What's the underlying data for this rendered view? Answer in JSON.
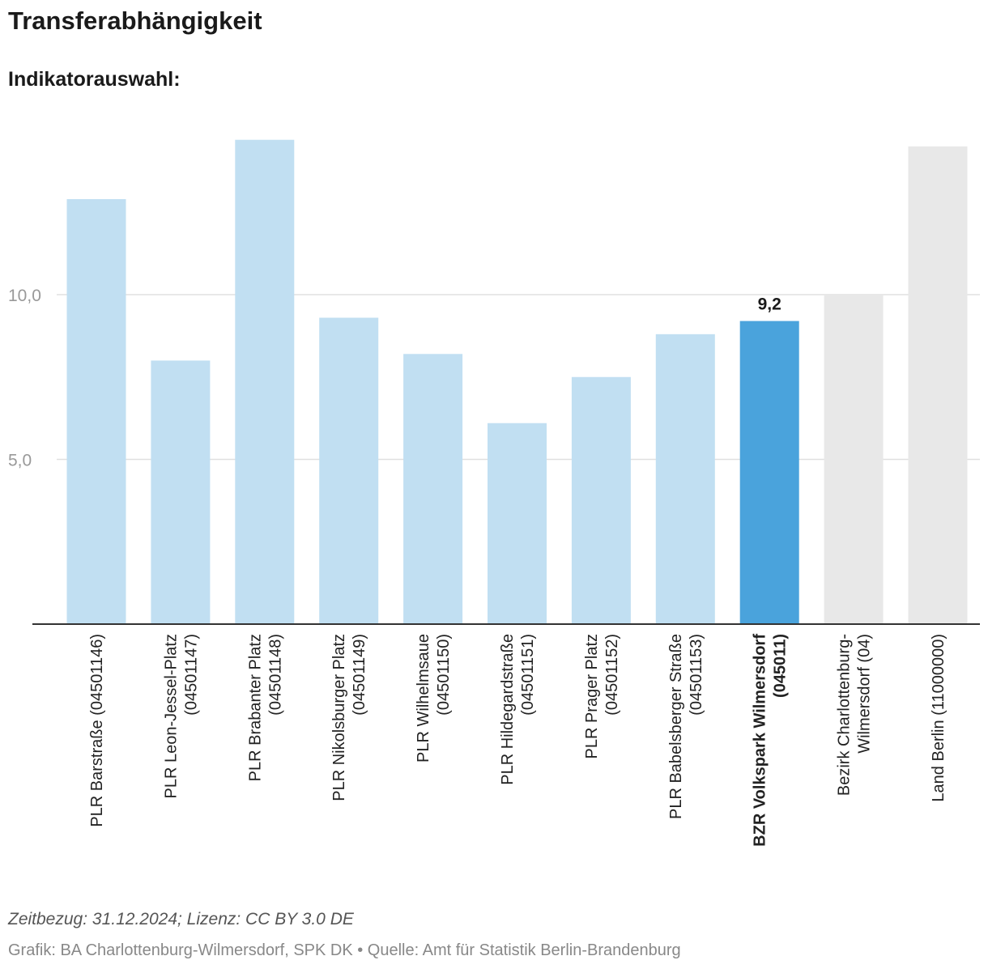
{
  "header": {
    "title": "Transferabhängigkeit",
    "subtitle": "Indikatorauswahl:"
  },
  "chart_data": {
    "type": "bar",
    "title": "Transferabhängigkeit",
    "xlabel": "",
    "ylabel": "",
    "ylim": [
      0,
      15
    ],
    "yticks": [
      {
        "value": 5,
        "label": "5,0"
      },
      {
        "value": 10,
        "label": "10,0"
      }
    ],
    "grid": true,
    "bars": [
      {
        "lines": [
          "PLR Barstraße (04501146)"
        ],
        "value": 12.9,
        "group": "plr"
      },
      {
        "lines": [
          "PLR Leon-Jessel-Platz",
          "(04501147)"
        ],
        "value": 8.0,
        "group": "plr"
      },
      {
        "lines": [
          "PLR Brabanter Platz",
          "(04501148)"
        ],
        "value": 14.7,
        "group": "plr"
      },
      {
        "lines": [
          "PLR Nikolsburger Platz",
          "(04501149)"
        ],
        "value": 9.3,
        "group": "plr"
      },
      {
        "lines": [
          "PLR Wilhelmsaue",
          "(04501150)"
        ],
        "value": 8.2,
        "group": "plr"
      },
      {
        "lines": [
          "PLR Hildegardstraße",
          "(04501151)"
        ],
        "value": 6.1,
        "group": "plr"
      },
      {
        "lines": [
          "PLR Prager Platz",
          "(04501152)"
        ],
        "value": 7.5,
        "group": "plr"
      },
      {
        "lines": [
          "PLR Babelsberger Straße",
          "(04501153)"
        ],
        "value": 8.8,
        "group": "plr"
      },
      {
        "lines": [
          "BZR Volkspark Wilmersdorf",
          "(045011)"
        ],
        "value": 9.2,
        "group": "highlight",
        "value_label": "9,2"
      },
      {
        "lines": [
          "Bezirk Charlottenburg-",
          "Wilmersdorf (04)"
        ],
        "value": 10.0,
        "group": "reference"
      },
      {
        "lines": [
          "Land Berlin (11000000)"
        ],
        "value": 14.5,
        "group": "reference"
      }
    ],
    "colors": {
      "plr": "#c1dff2",
      "highlight": "#4aa3dc",
      "reference": "#e8e8e8",
      "grid": "#e0e0e0",
      "axis": "#333333",
      "tick_text": "#999999",
      "label_text": "#222222"
    }
  },
  "footer": {
    "note": "Zeitbezug: 31.12.2024; Lizenz: CC BY 3.0 DE",
    "source": "Grafik: BA Charlottenburg-Wilmersdorf, SPK DK • Quelle: Amt für Statistik Berlin-Brandenburg"
  }
}
